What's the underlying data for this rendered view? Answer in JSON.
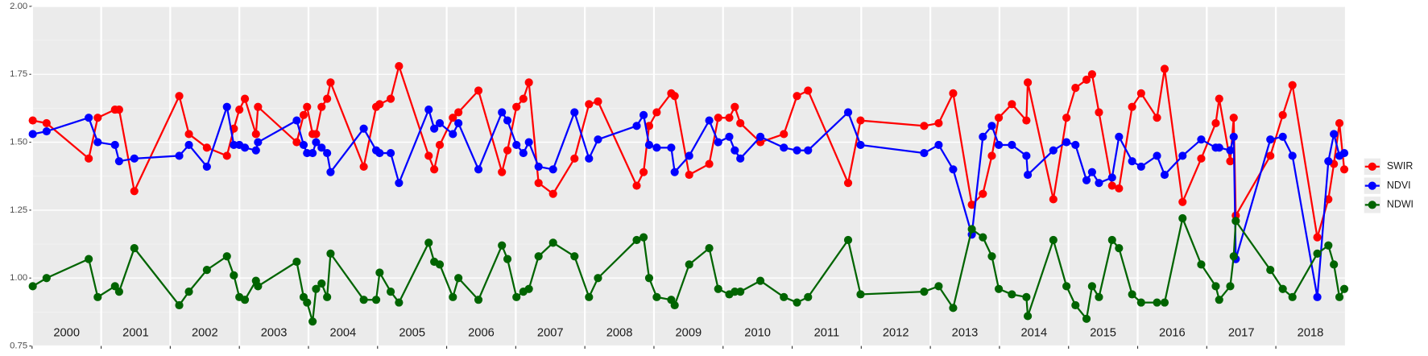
{
  "chart_data": {
    "type": "line",
    "x": [
      2000.01,
      2000.21,
      2000.82,
      2000.95,
      2001.2,
      2001.26,
      2001.48,
      2002.13,
      2002.27,
      2002.53,
      2002.82,
      2002.92,
      2003.0,
      2003.08,
      2003.24,
      2003.27,
      2003.83,
      2003.93,
      2003.98,
      2004.06,
      2004.11,
      2004.19,
      2004.27,
      2004.32,
      2004.8,
      2004.98,
      2005.03,
      2005.19,
      2005.31,
      2005.74,
      2005.82,
      2005.9,
      2006.09,
      2006.17,
      2006.46,
      2006.8,
      2006.88,
      2007.01,
      2007.11,
      2007.19,
      2007.33,
      2007.54,
      2007.85,
      2008.06,
      2008.19,
      2008.75,
      2008.85,
      2008.93,
      2009.04,
      2009.25,
      2009.3,
      2009.51,
      2009.8,
      2009.93,
      2010.09,
      2010.17,
      2010.25,
      2010.54,
      2010.88,
      2011.07,
      2011.23,
      2011.81,
      2011.99,
      2012.91,
      2013.12,
      2013.33,
      2013.6,
      2013.76,
      2013.89,
      2013.99,
      2014.18,
      2014.39,
      2014.41,
      2014.78,
      2014.97,
      2015.1,
      2015.26,
      2015.34,
      2015.44,
      2015.63,
      2015.73,
      2015.92,
      2016.05,
      2016.28,
      2016.39,
      2016.65,
      2016.92,
      2017.13,
      2017.18,
      2017.34,
      2017.39,
      2017.42,
      2017.92,
      2018.1,
      2018.24,
      2018.6,
      2018.76,
      2018.84,
      2018.92,
      2018.99
    ],
    "series": [
      {
        "name": "SWIR",
        "color": "#ff0000",
        "values": [
          1.58,
          1.57,
          1.44,
          1.59,
          1.62,
          1.62,
          1.32,
          1.67,
          1.53,
          1.48,
          1.45,
          1.55,
          1.62,
          1.66,
          1.53,
          1.63,
          1.5,
          1.6,
          1.63,
          1.53,
          1.53,
          1.63,
          1.66,
          1.72,
          1.41,
          1.63,
          1.64,
          1.66,
          1.78,
          1.45,
          1.4,
          1.49,
          1.59,
          1.61,
          1.69,
          1.39,
          1.47,
          1.63,
          1.66,
          1.72,
          1.35,
          1.31,
          1.44,
          1.64,
          1.65,
          1.34,
          1.39,
          1.56,
          1.61,
          1.68,
          1.67,
          1.38,
          1.42,
          1.59,
          1.59,
          1.63,
          1.57,
          1.5,
          1.53,
          1.67,
          1.69,
          1.35,
          1.58,
          1.56,
          1.57,
          1.68,
          1.27,
          1.31,
          1.45,
          1.59,
          1.64,
          1.58,
          1.72,
          1.29,
          1.59,
          1.7,
          1.73,
          1.75,
          1.61,
          1.34,
          1.33,
          1.63,
          1.68,
          1.59,
          1.77,
          1.28,
          1.44,
          1.57,
          1.66,
          1.43,
          1.59,
          1.23,
          1.45,
          1.6,
          1.71,
          1.15,
          1.29,
          1.42,
          1.57,
          1.4
        ]
      },
      {
        "name": "NDVI",
        "color": "#0000ff",
        "values": [
          1.53,
          1.54,
          1.59,
          1.5,
          1.49,
          1.43,
          1.44,
          1.45,
          1.49,
          1.41,
          1.63,
          1.49,
          1.49,
          1.48,
          1.47,
          1.5,
          1.58,
          1.49,
          1.46,
          1.46,
          1.5,
          1.48,
          1.46,
          1.39,
          1.55,
          1.47,
          1.46,
          1.46,
          1.35,
          1.62,
          1.55,
          1.57,
          1.53,
          1.57,
          1.4,
          1.61,
          1.58,
          1.49,
          1.46,
          1.5,
          1.41,
          1.4,
          1.61,
          1.44,
          1.51,
          1.56,
          1.6,
          1.49,
          1.48,
          1.48,
          1.39,
          1.45,
          1.58,
          1.5,
          1.52,
          1.47,
          1.44,
          1.52,
          1.48,
          1.47,
          1.47,
          1.61,
          1.49,
          1.46,
          1.49,
          1.4,
          1.16,
          1.52,
          1.56,
          1.49,
          1.49,
          1.45,
          1.38,
          1.47,
          1.5,
          1.49,
          1.36,
          1.39,
          1.35,
          1.37,
          1.52,
          1.43,
          1.41,
          1.45,
          1.38,
          1.45,
          1.51,
          1.48,
          1.48,
          1.47,
          1.52,
          1.07,
          1.51,
          1.52,
          1.45,
          0.93,
          1.43,
          1.53,
          1.45,
          1.46
        ]
      },
      {
        "name": "NDWI",
        "color": "#006400",
        "values": [
          0.97,
          1.0,
          1.07,
          0.93,
          0.97,
          0.95,
          1.11,
          0.9,
          0.95,
          1.03,
          1.08,
          1.01,
          0.93,
          0.92,
          0.99,
          0.97,
          1.06,
          0.93,
          0.91,
          0.84,
          0.96,
          0.98,
          0.93,
          1.09,
          0.92,
          0.92,
          1.02,
          0.95,
          0.91,
          1.13,
          1.06,
          1.05,
          0.93,
          1.0,
          0.92,
          1.12,
          1.07,
          0.93,
          0.95,
          0.96,
          1.08,
          1.13,
          1.08,
          0.93,
          1.0,
          1.14,
          1.15,
          1.0,
          0.93,
          0.92,
          0.9,
          1.05,
          1.11,
          0.96,
          0.94,
          0.95,
          0.95,
          0.99,
          0.93,
          0.91,
          0.93,
          1.14,
          0.94,
          0.95,
          0.97,
          0.89,
          1.18,
          1.15,
          1.08,
          0.96,
          0.94,
          0.93,
          0.86,
          1.14,
          0.97,
          0.9,
          0.85,
          0.97,
          0.93,
          1.14,
          1.11,
          0.94,
          0.91,
          0.91,
          0.91,
          1.22,
          1.05,
          0.97,
          0.92,
          0.97,
          1.08,
          1.21,
          1.03,
          0.96,
          0.93,
          1.09,
          1.12,
          1.05,
          0.93,
          0.96
        ]
      }
    ],
    "xlim": [
      2000,
      2019
    ],
    "xticks": [
      {
        "value": 2000.5,
        "label": "2000"
      },
      {
        "value": 2001.5,
        "label": "2001"
      },
      {
        "value": 2002.5,
        "label": "2002"
      },
      {
        "value": 2003.5,
        "label": "2003"
      },
      {
        "value": 2004.5,
        "label": "2004"
      },
      {
        "value": 2005.5,
        "label": "2005"
      },
      {
        "value": 2006.5,
        "label": "2006"
      },
      {
        "value": 2007.5,
        "label": "2007"
      },
      {
        "value": 2008.5,
        "label": "2008"
      },
      {
        "value": 2009.5,
        "label": "2009"
      },
      {
        "value": 2010.5,
        "label": "2010"
      },
      {
        "value": 2011.5,
        "label": "2011"
      },
      {
        "value": 2012.5,
        "label": "2012"
      },
      {
        "value": 2013.5,
        "label": "2013"
      },
      {
        "value": 2014.5,
        "label": "2014"
      },
      {
        "value": 2015.5,
        "label": "2015"
      },
      {
        "value": 2016.5,
        "label": "2016"
      },
      {
        "value": 2017.5,
        "label": "2017"
      },
      {
        "value": 2018.5,
        "label": "2018"
      }
    ],
    "ylim": [
      0.75,
      2.0
    ],
    "yticks": [
      {
        "value": 0.75,
        "label": "0.75"
      },
      {
        "value": 1.0,
        "label": "1.00"
      },
      {
        "value": 1.25,
        "label": "1.25"
      },
      {
        "value": 1.5,
        "label": "1.50"
      },
      {
        "value": 1.75,
        "label": "1.75"
      },
      {
        "value": 2.0,
        "label": "2.00"
      }
    ],
    "grid": true,
    "legend": "right"
  }
}
